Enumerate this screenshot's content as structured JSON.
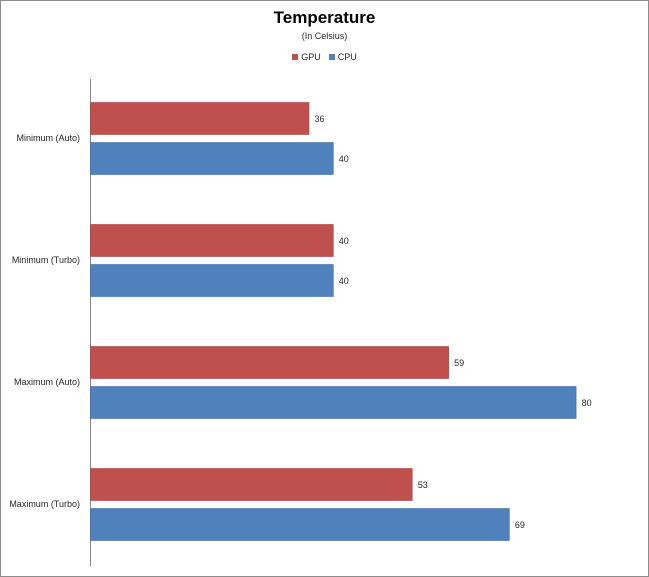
{
  "chart_data": {
    "type": "bar",
    "orientation": "horizontal",
    "title": "Temperature",
    "subtitle": "(In Celsius)",
    "xlabel": "",
    "ylabel": "",
    "categories": [
      "Minimum (Auto)",
      "Minimum (Turbo)",
      "Maximum (Auto)",
      "Maximum (Turbo)"
    ],
    "series": [
      {
        "name": "GPU",
        "color": "#c0504d",
        "values": [
          36,
          40,
          59,
          53
        ]
      },
      {
        "name": "CPU",
        "color": "#4f81bd",
        "values": [
          40,
          40,
          80,
          69
        ]
      }
    ],
    "xlim": [
      0,
      85
    ],
    "grid": false,
    "legend_position": "top-center"
  }
}
